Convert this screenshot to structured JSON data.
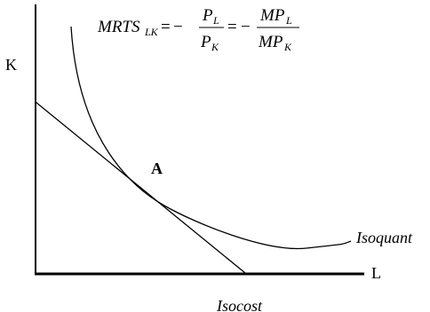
{
  "axes": {
    "y_label": "K",
    "x_label": "L"
  },
  "point_label": "A",
  "curves": {
    "isoquant": "Isoquant",
    "isocost": "Isocost"
  },
  "formula": {
    "lhs": "MRTS",
    "lhs_sub": "LK",
    "equals": "=",
    "minus": "−",
    "frac1": {
      "num": "P",
      "num_sub": "L",
      "den": "P",
      "den_sub": "K"
    },
    "frac2": {
      "num": "MP",
      "num_sub": "L",
      "den": "MP",
      "den_sub": "K"
    }
  }
}
